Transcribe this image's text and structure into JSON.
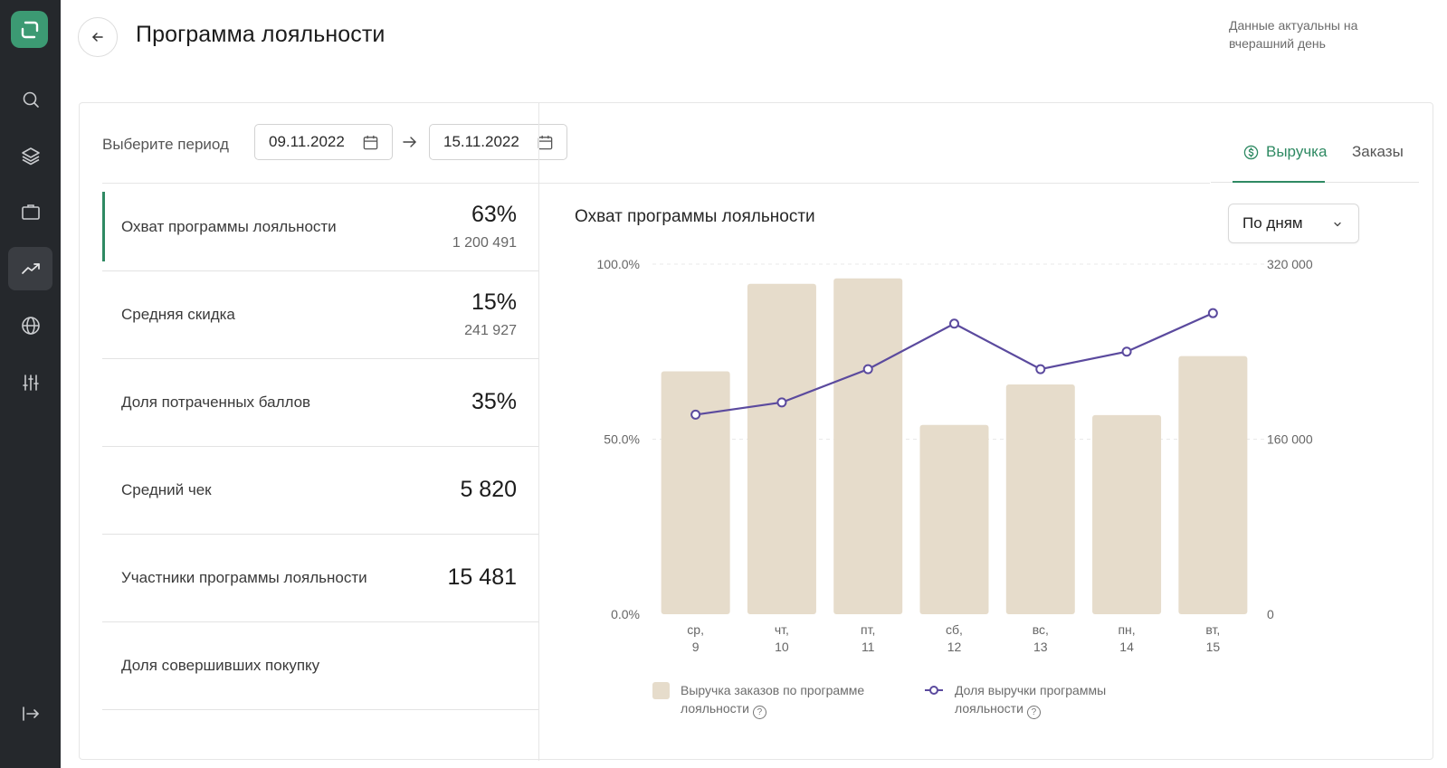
{
  "header": {
    "title": "Программа лояльности",
    "note": "Данные актуальны на вчерашний день"
  },
  "sidebar": {
    "items": [
      {
        "name": "search",
        "icon": "search-icon"
      },
      {
        "name": "layers",
        "icon": "layers-icon"
      },
      {
        "name": "briefcase",
        "icon": "briefcase-icon"
      },
      {
        "name": "analytics",
        "icon": "trending-up-icon",
        "active": true
      },
      {
        "name": "globe",
        "icon": "globe-icon"
      },
      {
        "name": "settings",
        "icon": "sliders-icon"
      }
    ],
    "logout_icon": "logout-icon"
  },
  "period": {
    "label": "Выберите период",
    "from": "09.11.2022",
    "to": "15.11.2022"
  },
  "tabs": {
    "revenue": "Выручка",
    "orders": "Заказы",
    "active": "revenue"
  },
  "metrics": [
    {
      "label": "Охват программы лояльности",
      "value": "63%",
      "sub": "1 200 491"
    },
    {
      "label": "Средняя скидка",
      "value": "15%",
      "sub": "241 927"
    },
    {
      "label": "Доля потраченных баллов",
      "value": "35%",
      "sub": ""
    },
    {
      "label": "Средний чек",
      "value": "5 820",
      "sub": ""
    },
    {
      "label": "Участники программы лояльности",
      "value": "15 481",
      "sub": ""
    },
    {
      "label": "Доля совершивших покупку",
      "value": "",
      "sub": ""
    }
  ],
  "chart_panel": {
    "title": "Охват программы лояльности",
    "grouping": "По дням"
  },
  "legend": {
    "bar": "Выручка заказов по программе лояльности",
    "line": "Доля выручки программы лояльности"
  },
  "colors": {
    "accent": "#2f8a63",
    "bar": "#e6dccb",
    "line": "#5b4a9e",
    "sidebar": "#25282c"
  },
  "chart_data": {
    "type": "bar",
    "categories": [
      "ср,\n9",
      "чт,\n10",
      "пт,\n11",
      "сб,\n12",
      "вс,\n13",
      "пн,\n14",
      "вт,\n15"
    ],
    "left_axis": {
      "ticks": [
        "0.0%",
        "50.0%",
        "100.0%"
      ],
      "range": [
        0,
        100
      ]
    },
    "right_axis": {
      "ticks": [
        "0",
        "160 000",
        "320 000"
      ],
      "range": [
        0,
        320000
      ]
    },
    "series": [
      {
        "name": "Выручка заказов по программе лояльности",
        "type": "bar",
        "axis": "right",
        "values": [
          222000,
          302000,
          307000,
          173000,
          210000,
          182000,
          236000
        ]
      },
      {
        "name": "Доля выручки программы лояльности",
        "type": "line",
        "axis": "left",
        "values": [
          57,
          60.5,
          70,
          83,
          70,
          75,
          86
        ]
      }
    ],
    "grid": true,
    "legend_position": "bottom"
  }
}
